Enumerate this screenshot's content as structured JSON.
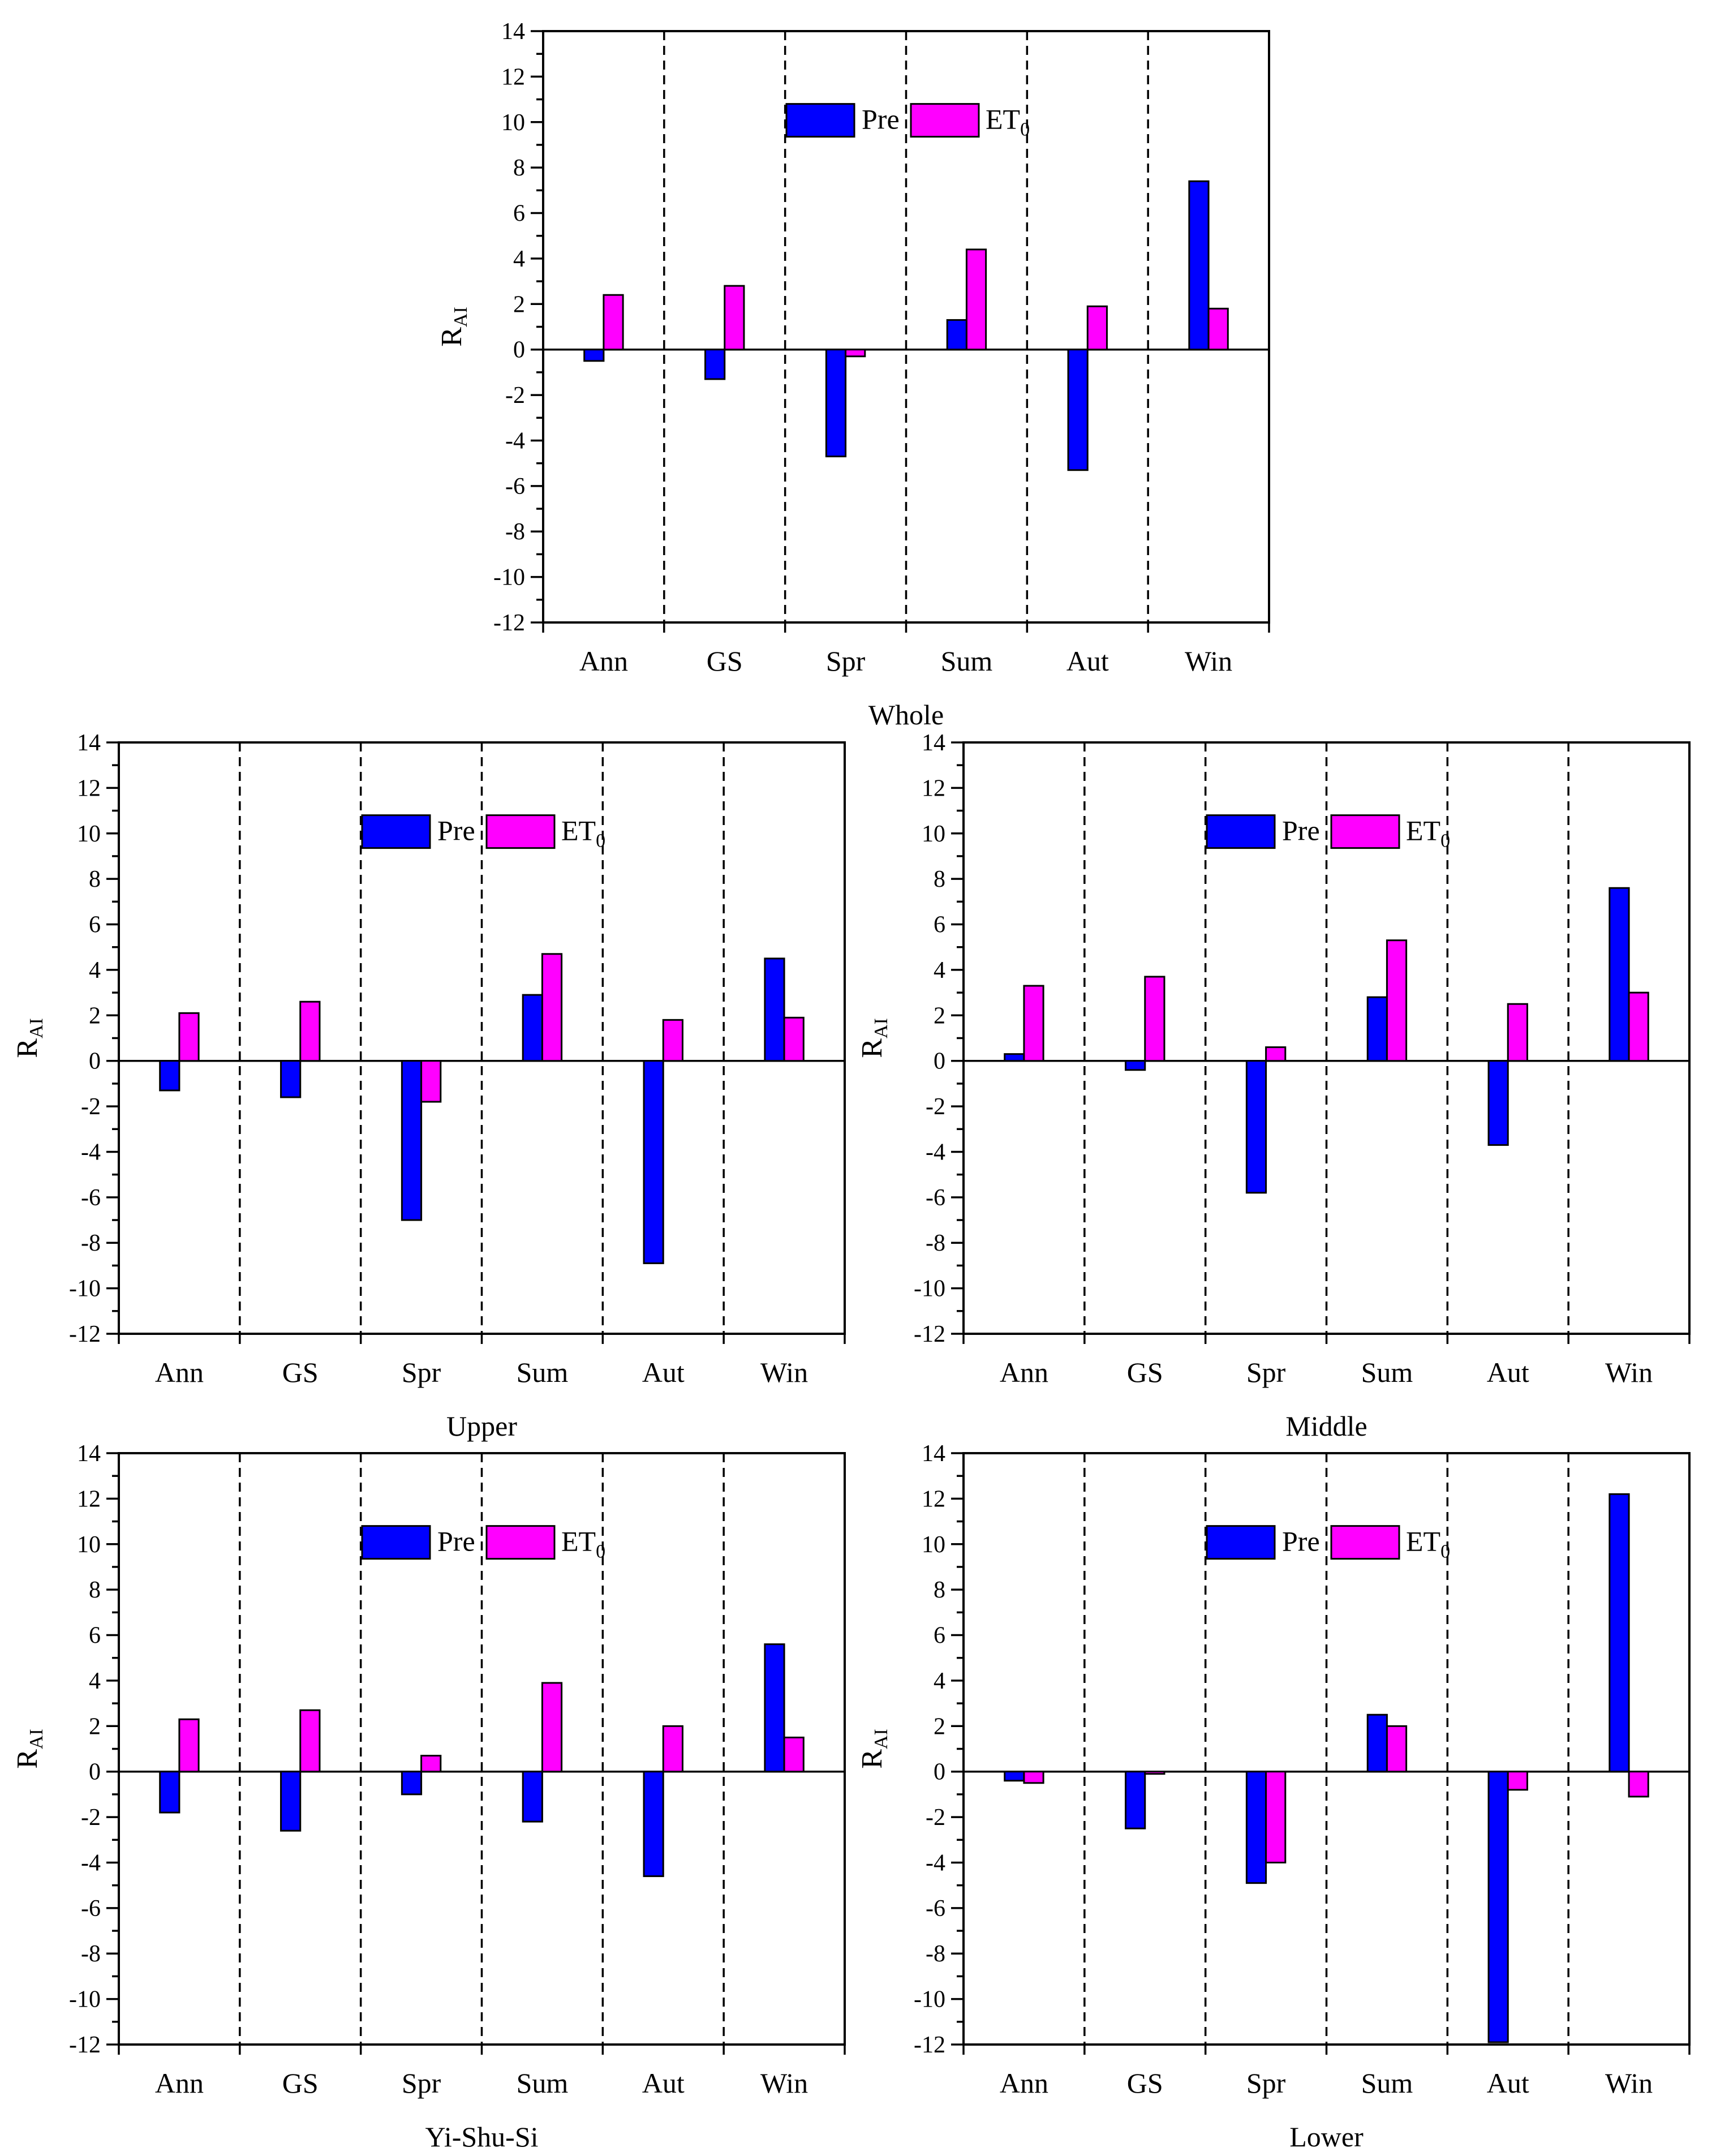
{
  "figure": {
    "categories": [
      "Ann",
      "GS",
      "Spr",
      "Sum",
      "Aut",
      "Win"
    ],
    "series_names": [
      "Pre",
      "ET0"
    ],
    "colors": {
      "Pre": "#0000ff",
      "ET0": "#ff00ff",
      "axis": "#000000"
    },
    "ylabel_main": "R",
    "ylabel_sub": "AI",
    "legend_pre": "Pre",
    "legend_et_main": "ET",
    "legend_et_sub": "0"
  },
  "chart_data": [
    {
      "type": "bar",
      "title": "Whole",
      "ylabel": "RAI",
      "ylim": [
        -12,
        14
      ],
      "yticks": [
        -12,
        -10,
        -8,
        -6,
        -4,
        -2,
        0,
        2,
        4,
        6,
        8,
        10,
        12,
        14
      ],
      "categories": [
        "Ann",
        "GS",
        "Spr",
        "Sum",
        "Aut",
        "Win"
      ],
      "series": [
        {
          "name": "Pre",
          "values": [
            -0.5,
            -1.3,
            -4.7,
            1.3,
            -5.3,
            7.4
          ]
        },
        {
          "name": "ET0",
          "values": [
            2.4,
            2.8,
            -0.3,
            4.4,
            1.9,
            1.8
          ]
        }
      ],
      "legend": "top-center",
      "category_separators": "dashed"
    },
    {
      "type": "bar",
      "title": "Upper",
      "ylabel": "RAI",
      "ylim": [
        -12,
        14
      ],
      "yticks": [
        -12,
        -10,
        -8,
        -6,
        -4,
        -2,
        0,
        2,
        4,
        6,
        8,
        10,
        12,
        14
      ],
      "categories": [
        "Ann",
        "GS",
        "Spr",
        "Sum",
        "Aut",
        "Win"
      ],
      "series": [
        {
          "name": "Pre",
          "values": [
            -1.3,
            -1.6,
            -7.0,
            2.9,
            -8.9,
            4.5
          ]
        },
        {
          "name": "ET0",
          "values": [
            2.1,
            2.6,
            -1.8,
            4.7,
            1.8,
            1.9
          ]
        }
      ],
      "legend": "top-center",
      "category_separators": "dashed"
    },
    {
      "type": "bar",
      "title": "Middle",
      "ylabel": "RAI",
      "ylim": [
        -12,
        14
      ],
      "yticks": [
        -12,
        -10,
        -8,
        -6,
        -4,
        -2,
        0,
        2,
        4,
        6,
        8,
        10,
        12,
        14
      ],
      "categories": [
        "Ann",
        "GS",
        "Spr",
        "Sum",
        "Aut",
        "Win"
      ],
      "series": [
        {
          "name": "Pre",
          "values": [
            0.3,
            -0.4,
            -5.8,
            2.8,
            -3.7,
            7.6
          ]
        },
        {
          "name": "ET0",
          "values": [
            3.3,
            3.7,
            0.6,
            5.3,
            2.5,
            3.0
          ]
        }
      ],
      "legend": "top-center",
      "category_separators": "dashed"
    },
    {
      "type": "bar",
      "title": "Yi-Shu-Si",
      "ylabel": "RAI",
      "ylim": [
        -12,
        14
      ],
      "yticks": [
        -12,
        -10,
        -8,
        -6,
        -4,
        -2,
        0,
        2,
        4,
        6,
        8,
        10,
        12,
        14
      ],
      "categories": [
        "Ann",
        "GS",
        "Spr",
        "Sum",
        "Aut",
        "Win"
      ],
      "series": [
        {
          "name": "Pre",
          "values": [
            -1.8,
            -2.6,
            -1.0,
            -2.2,
            -4.6,
            5.6
          ]
        },
        {
          "name": "ET0",
          "values": [
            2.3,
            2.7,
            0.7,
            3.9,
            2.0,
            1.5
          ]
        }
      ],
      "legend": "top-center",
      "category_separators": "dashed"
    },
    {
      "type": "bar",
      "title": "Lower",
      "ylabel": "RAI",
      "ylim": [
        -12,
        14
      ],
      "yticks": [
        -12,
        -10,
        -8,
        -6,
        -4,
        -2,
        0,
        2,
        4,
        6,
        8,
        10,
        12,
        14
      ],
      "categories": [
        "Ann",
        "GS",
        "Spr",
        "Sum",
        "Aut",
        "Win"
      ],
      "series": [
        {
          "name": "Pre",
          "values": [
            -0.4,
            -2.5,
            -4.9,
            2.5,
            -11.9,
            12.2
          ]
        },
        {
          "name": "ET0",
          "values": [
            -0.5,
            -0.1,
            -4.0,
            2.0,
            -0.8,
            -1.1
          ]
        }
      ],
      "legend": "top-center",
      "category_separators": "dashed"
    }
  ]
}
